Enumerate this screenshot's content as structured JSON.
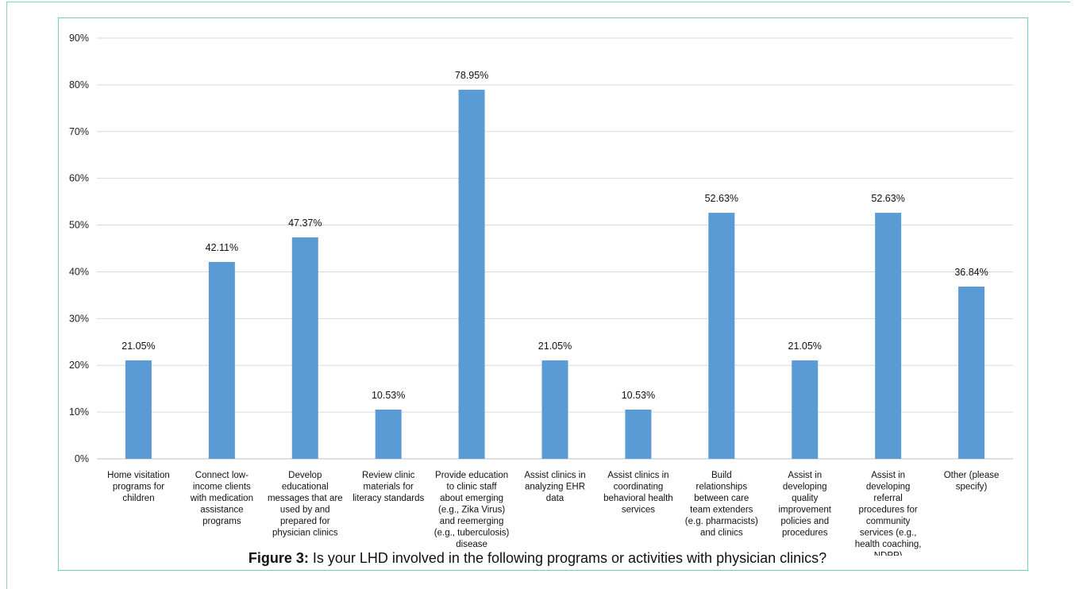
{
  "figure": {
    "caption_label": "Figure 3:",
    "caption_text": " Is your LHD involved in the following programs or activities with physician clinics?"
  },
  "chart_data": {
    "type": "bar",
    "title": "",
    "xlabel": "",
    "ylabel": "",
    "ylim": [
      0,
      90
    ],
    "yticks": [
      "0%",
      "10%",
      "20%",
      "30%",
      "40%",
      "50%",
      "60%",
      "70%",
      "80%",
      "90%"
    ],
    "grid": true,
    "bar_color": "#5b9bd5",
    "categories": [
      [
        "Home visitation",
        "programs for",
        "children"
      ],
      [
        "Connect low-",
        "income clients",
        "with medication",
        "assistance",
        "programs"
      ],
      [
        "Develop",
        "educational",
        "messages that are",
        "used by and",
        "prepared for",
        "physician clinics"
      ],
      [
        "Review clinic",
        "materials for",
        "literacy standards"
      ],
      [
        "Provide education",
        "to clinic staff",
        "about emerging",
        "(e.g., Zika Virus)",
        "and reemerging",
        "(e.g., tuberculosis)",
        "disease"
      ],
      [
        "Assist clinics in",
        "analyzing EHR",
        "data"
      ],
      [
        "Assist clinics in",
        "coordinating",
        "behavioral health",
        "services"
      ],
      [
        "Build",
        "relationships",
        "between care",
        "team extenders",
        "(e.g. pharmacists)",
        "and clinics"
      ],
      [
        "Assist in",
        "developing",
        "quality",
        "improvement",
        "policies and",
        "procedures"
      ],
      [
        "Assist in",
        "developing",
        "referral",
        "procedures for",
        "community",
        "services (e.g.,",
        "health coaching,",
        "NDPP)"
      ],
      [
        "Other (please",
        "specify)"
      ]
    ],
    "values": [
      21.05,
      42.11,
      47.37,
      10.53,
      78.95,
      21.05,
      10.53,
      52.63,
      21.05,
      52.63,
      36.84
    ],
    "data_labels": [
      "21.05%",
      "42.11%",
      "47.37%",
      "10.53%",
      "78.95%",
      "21.05%",
      "10.53%",
      "52.63%",
      "21.05%",
      "52.63%",
      "36.84%"
    ]
  }
}
